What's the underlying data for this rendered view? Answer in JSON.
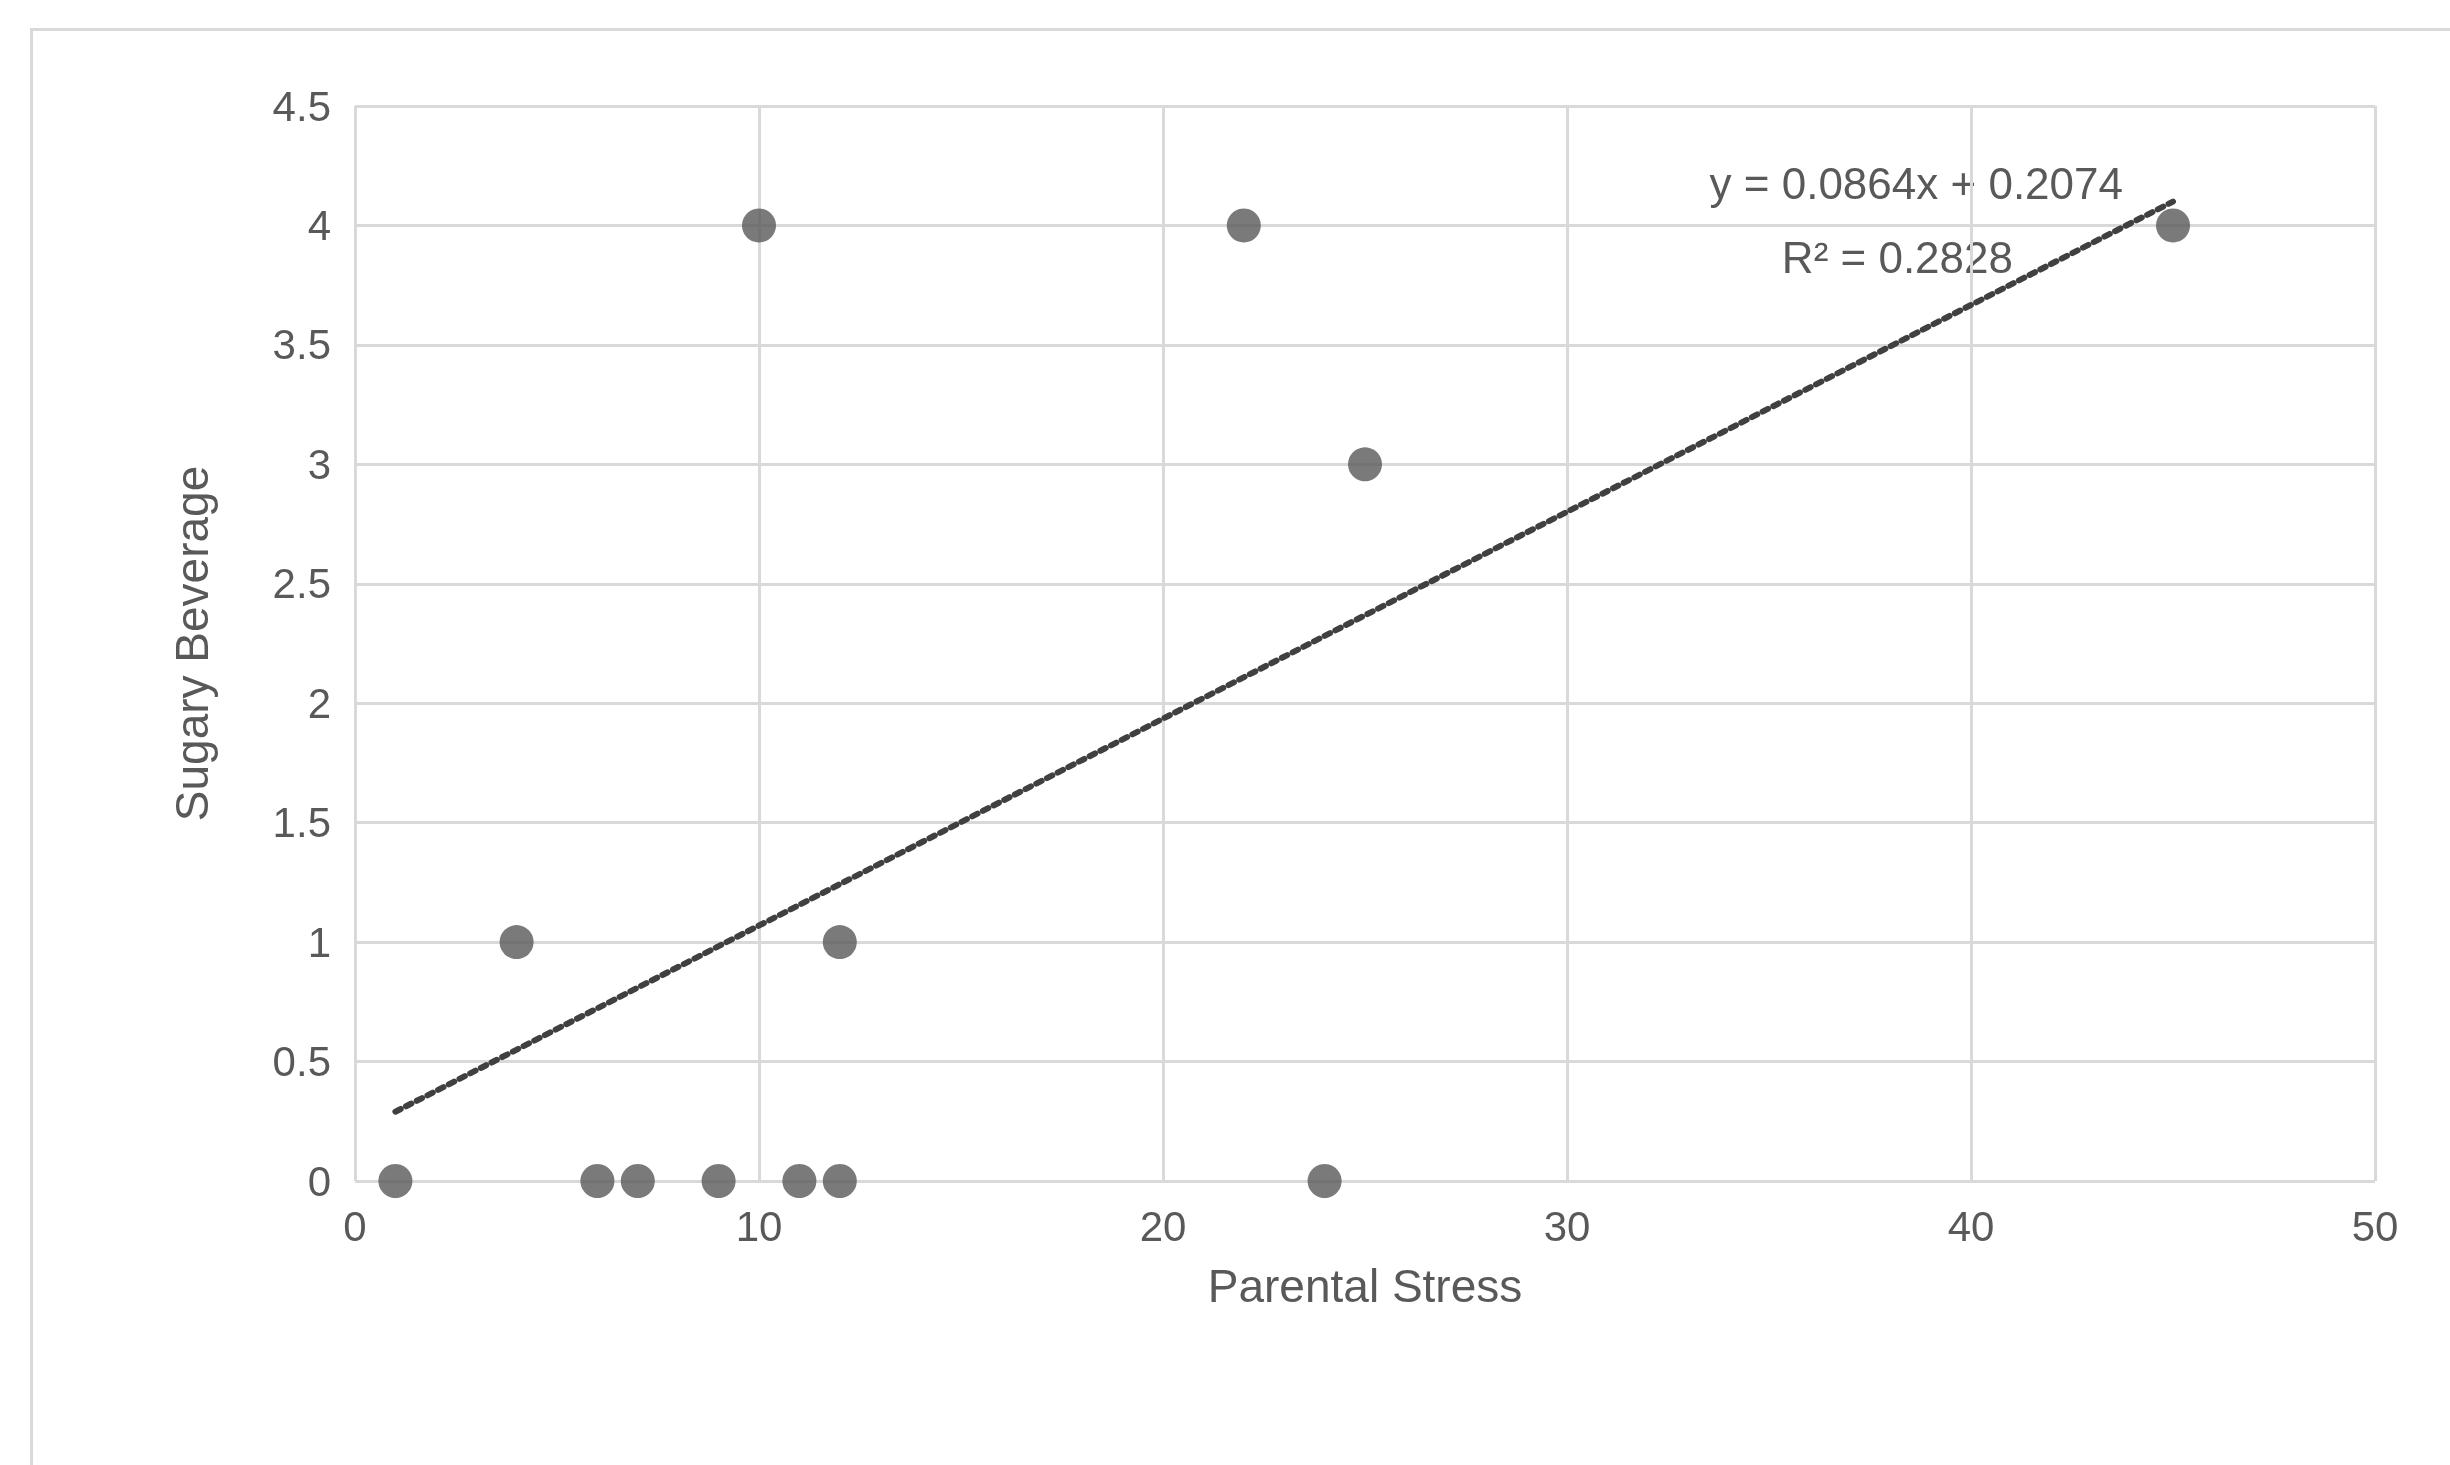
{
  "chart_data": {
    "type": "scatter",
    "xlabel": "Parental Stress",
    "ylabel": "Sugary Beverage",
    "xlim": [
      0,
      50
    ],
    "xticks": [
      0,
      10,
      20,
      30,
      40,
      50
    ],
    "ylim": [
      0,
      4.5
    ],
    "yticks": [
      0,
      0.5,
      1,
      1.5,
      2,
      2.5,
      3,
      3.5,
      4,
      4.5
    ],
    "grid": true,
    "marker": "circle",
    "series": [
      {
        "color": "#595959",
        "x": [
          1,
          4,
          6,
          7,
          9,
          10,
          11,
          12,
          12,
          22,
          24,
          25,
          45
        ],
        "values": [
          0,
          1,
          0,
          0,
          0,
          4,
          0,
          0,
          1,
          4,
          0,
          3,
          4
        ]
      },
      {
        "type": "line",
        "color": "#404040",
        "line_style": "dotted",
        "marker": "none",
        "x": [
          1,
          45
        ],
        "values": [
          0.29,
          4.1
        ]
      }
    ],
    "annotations": [
      "y = 0.0864x + 0.2074",
      "R² = 0.2828"
    ]
  }
}
